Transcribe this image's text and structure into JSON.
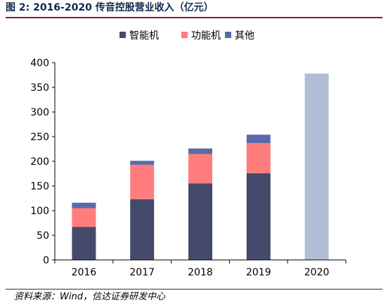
{
  "figure": {
    "title": "图 2:  2016-2020 传音控股营业收入（亿元）",
    "source": "资料来源：Wind，信达证券研发中心"
  },
  "chart_data": {
    "type": "bar",
    "stacked": true,
    "categories": [
      "2016",
      "2017",
      "2018",
      "2019",
      "2020"
    ],
    "series": [
      {
        "name": "智能机",
        "color": "#444a6b",
        "values": [
          67,
          123,
          155,
          176,
          null
        ]
      },
      {
        "name": "功能机",
        "color": "#ff7d7d",
        "values": [
          38,
          70,
          60,
          61,
          null
        ]
      },
      {
        "name": "其他",
        "color": "#5a6aa8",
        "values": [
          11,
          8,
          11,
          17,
          null
        ]
      }
    ],
    "total_only": {
      "category": "2020",
      "value": 378,
      "color": "#b2bed3"
    },
    "title": "",
    "xlabel": "",
    "ylabel": "",
    "ylim": [
      0,
      400
    ],
    "yticks": [
      0,
      50,
      100,
      150,
      200,
      250,
      300,
      350,
      400
    ],
    "grid": false,
    "legend_position": "top"
  }
}
